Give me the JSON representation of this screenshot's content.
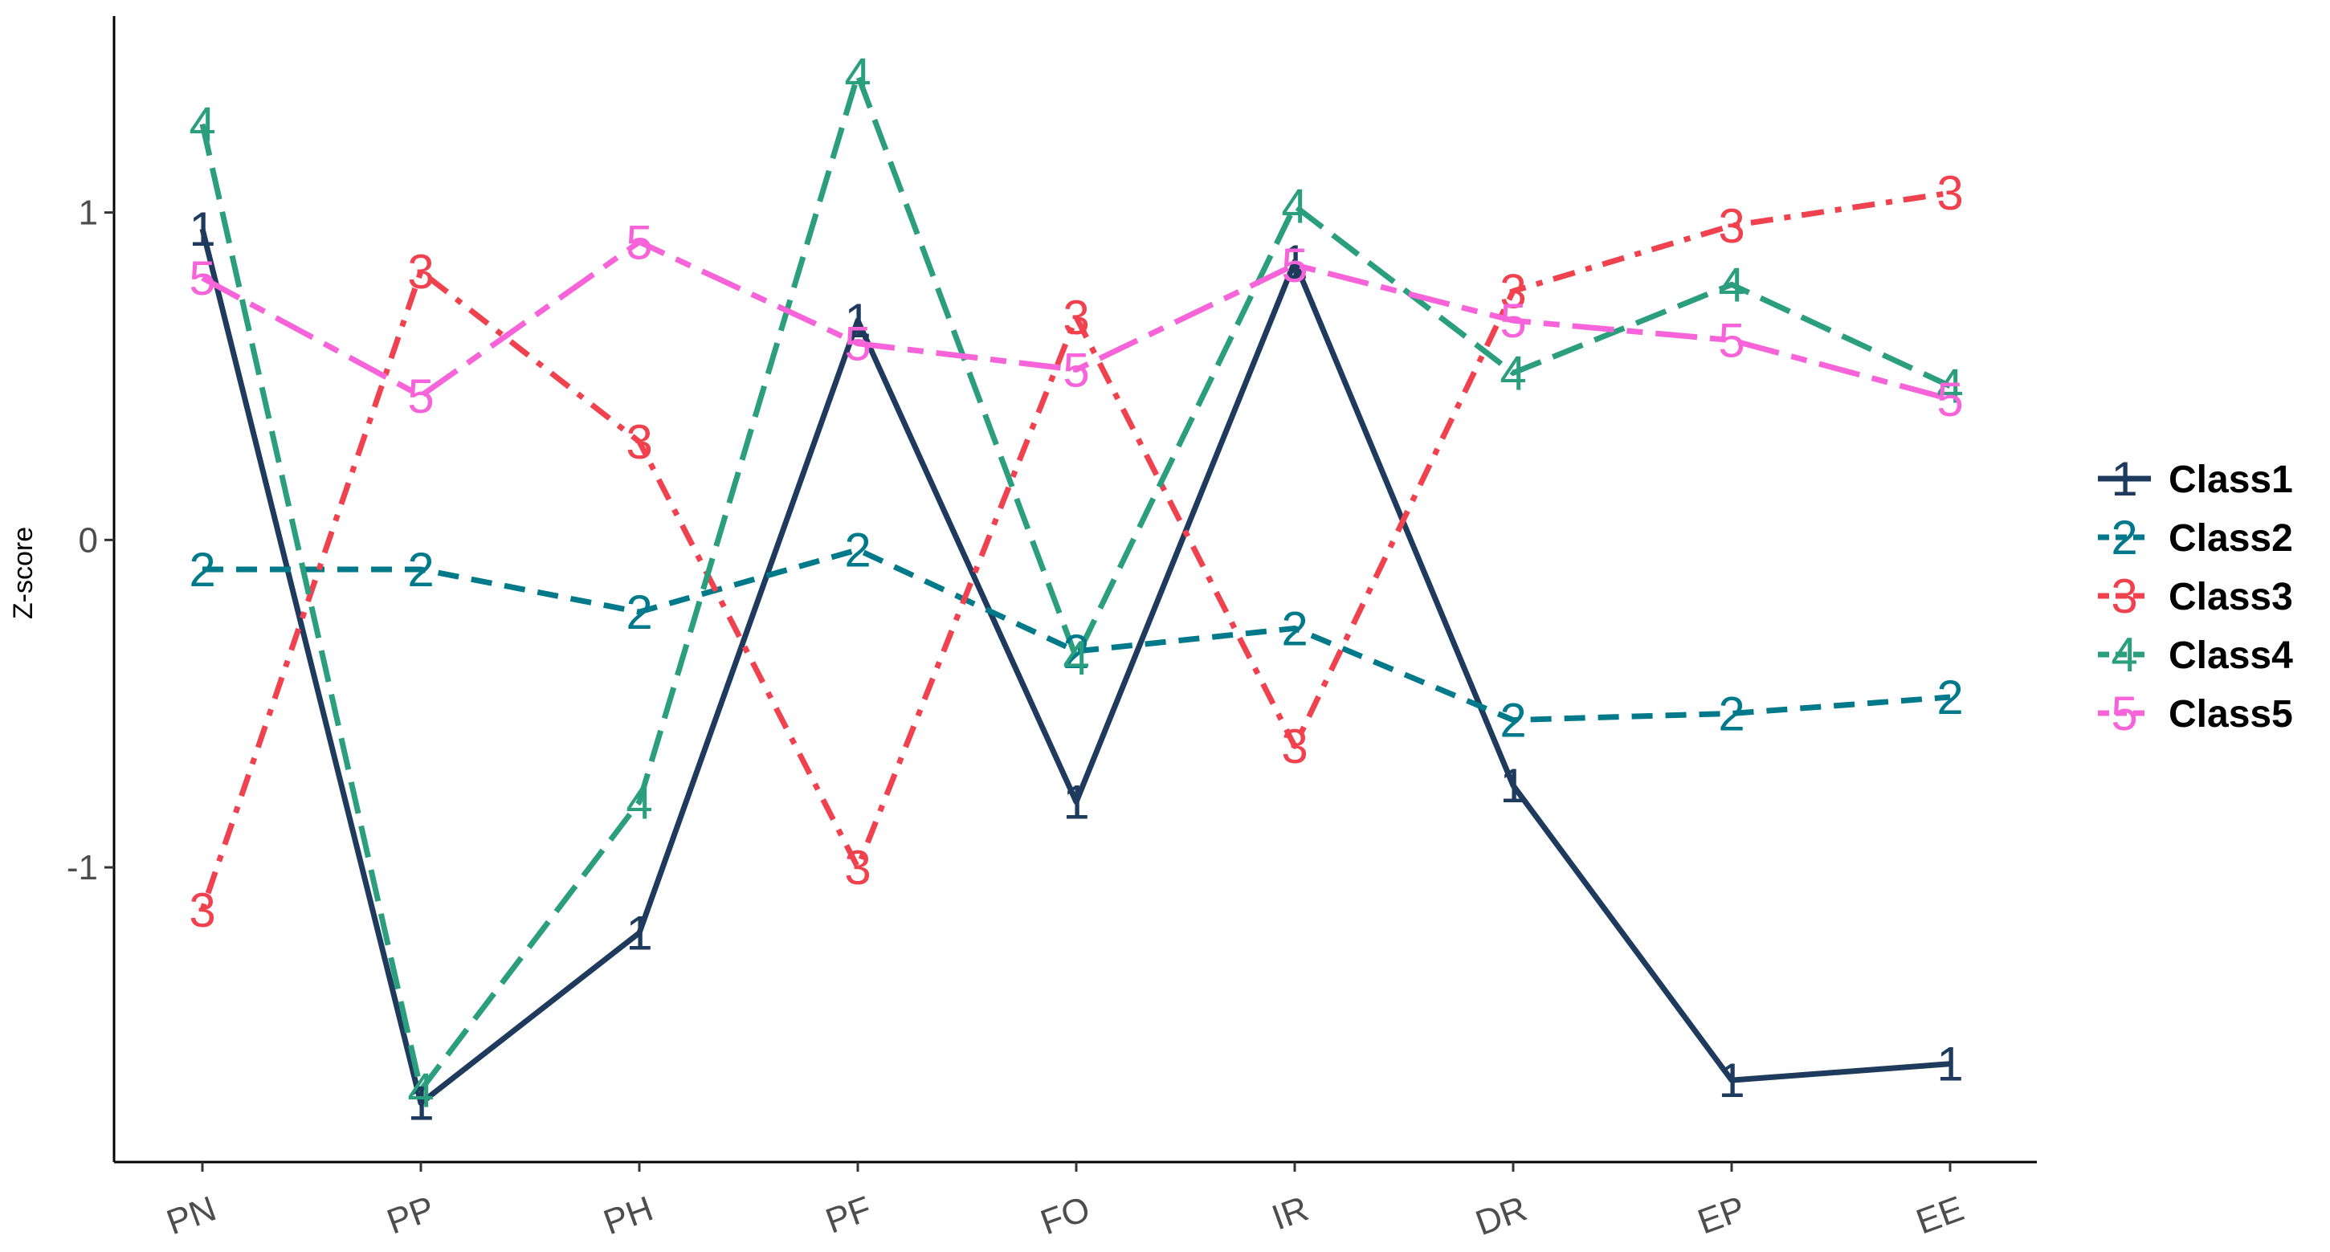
{
  "chart_data": {
    "type": "line",
    "ylabel": "Z-score",
    "xlabel": "",
    "categories": [
      "PN",
      "PP",
      "PH",
      "PF",
      "FO",
      "IR",
      "DR",
      "EP",
      "EE"
    ],
    "ylim": [
      -1.9,
      1.6
    ],
    "yticks": [
      -1,
      0,
      1
    ],
    "grid": false,
    "legend_position": "right",
    "series": [
      {
        "name": "Class1",
        "marker": "1",
        "color": "#1e3a5c",
        "dash": "solid",
        "values": [
          0.95,
          -1.72,
          -1.2,
          0.67,
          -0.8,
          0.85,
          -0.75,
          -1.65,
          -1.6
        ]
      },
      {
        "name": "Class2",
        "marker": "2",
        "color": "#007a8a",
        "dash": "dashed",
        "values": [
          -0.09,
          -0.09,
          -0.22,
          -0.03,
          -0.34,
          -0.27,
          -0.55,
          -0.53,
          -0.48
        ]
      },
      {
        "name": "Class3",
        "marker": "3",
        "color": "#f0414f",
        "dash": "dotdash",
        "values": [
          -1.13,
          0.82,
          0.3,
          -1.0,
          0.68,
          -0.63,
          0.76,
          0.96,
          1.06
        ]
      },
      {
        "name": "Class4",
        "marker": "4",
        "color": "#2b9e7d",
        "dash": "longdash",
        "values": [
          1.27,
          -1.68,
          -0.8,
          1.42,
          -0.36,
          1.02,
          0.51,
          0.78,
          0.47
        ]
      },
      {
        "name": "Class5",
        "marker": "5",
        "color": "#f763d9",
        "dash": "twodash",
        "values": [
          0.8,
          0.44,
          0.91,
          0.6,
          0.52,
          0.84,
          0.67,
          0.61,
          0.43
        ]
      }
    ]
  }
}
